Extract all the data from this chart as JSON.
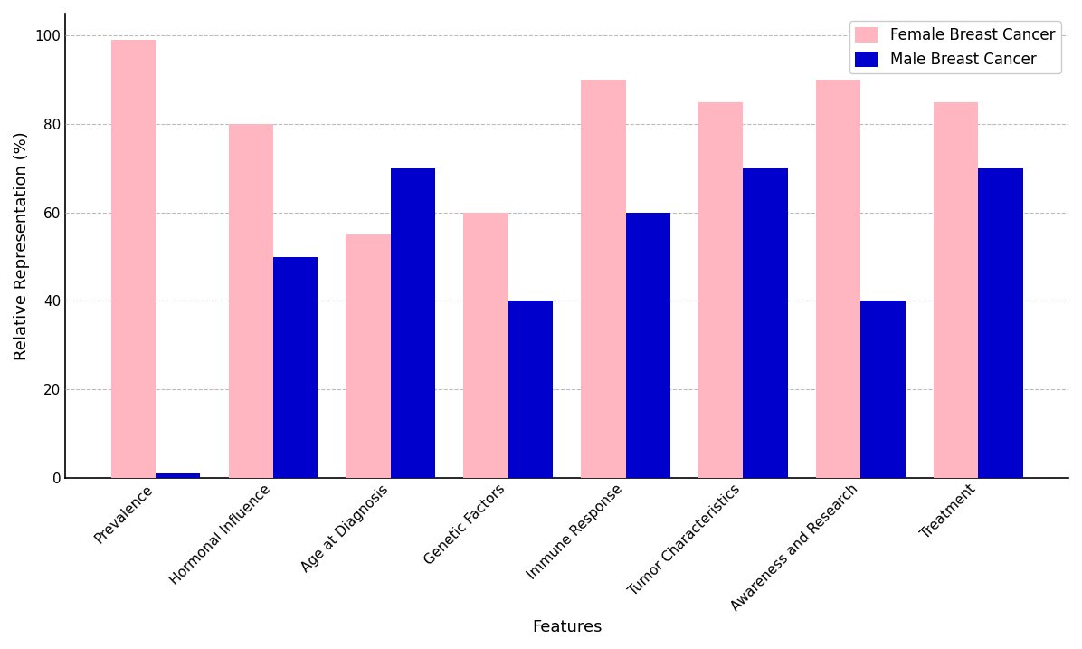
{
  "categories": [
    "Prevalence",
    "Hormonal Influence",
    "Age at Diagnosis",
    "Genetic Factors",
    "Immune Response",
    "Tumor Characteristics",
    "Awareness and Research",
    "Treatment"
  ],
  "female_values": [
    99,
    80,
    55,
    60,
    90,
    85,
    90,
    85
  ],
  "male_values": [
    1,
    50,
    70,
    40,
    60,
    70,
    40,
    70
  ],
  "female_color": "#FFB6C1",
  "male_color": "#0000CC",
  "female_label": "Female Breast Cancer",
  "male_label": "Male Breast Cancer",
  "ylabel": "Relative Representation (%)",
  "xlabel": "Features",
  "ylim": [
    0,
    105
  ],
  "bar_width": 0.38,
  "grid_color": "#bbbbbb",
  "background_color": "#ffffff",
  "legend_fontsize": 12,
  "axis_label_fontsize": 13,
  "tick_label_fontsize": 11,
  "yticks": [
    0,
    20,
    40,
    60,
    80,
    100
  ]
}
